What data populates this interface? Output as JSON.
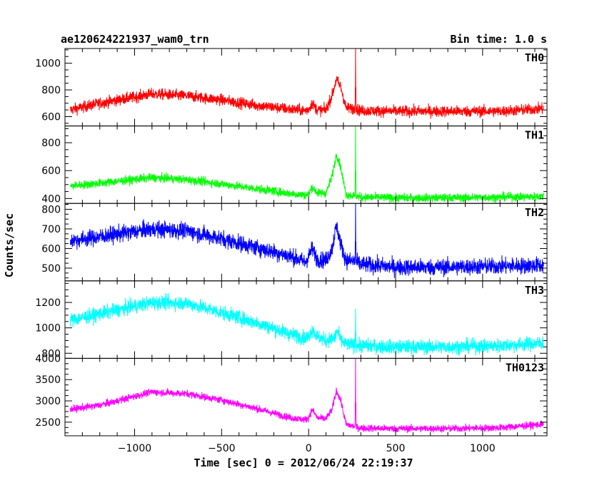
{
  "header": {
    "title": "ae120624221937_wam0_trn",
    "bin_time": "Bin time: 1.0 s"
  },
  "axes": {
    "ylabel": "Counts/sec",
    "xlabel": "Time [sec] 0 = 2012/06/24 22:19:37"
  },
  "chart_data": {
    "type": "line",
    "x_range": [
      -1400,
      1370
    ],
    "x_ticks": [
      -1000,
      -500,
      0,
      500,
      1000
    ],
    "x_tick_labels": [
      "−1000",
      "−500",
      "0",
      "500",
      "1000"
    ],
    "panels": [
      {
        "name": "TH0",
        "color": "#ff0000",
        "ylim": [
          530,
          1110
        ],
        "y_ticks": [
          600,
          800,
          1000
        ],
        "y_tick_labels": [
          "600",
          "800",
          "1000"
        ],
        "noise": 30,
        "knots": [
          [
            -1370,
            650
          ],
          [
            -1200,
            700
          ],
          [
            -900,
            770
          ],
          [
            -700,
            755
          ],
          [
            -500,
            725
          ],
          [
            -300,
            685
          ],
          [
            -100,
            655
          ],
          [
            -20,
            645
          ],
          [
            0,
            655
          ],
          [
            20,
            700
          ],
          [
            50,
            650
          ],
          [
            100,
            650
          ],
          [
            135,
            760
          ],
          [
            160,
            880
          ],
          [
            185,
            820
          ],
          [
            215,
            665
          ],
          [
            260,
            660
          ],
          [
            300,
            645
          ],
          [
            500,
            640
          ],
          [
            800,
            640
          ],
          [
            1100,
            640
          ],
          [
            1350,
            660
          ]
        ],
        "spike": [
          270,
          1110
        ]
      },
      {
        "name": "TH1",
        "color": "#00ff00",
        "ylim": [
          365,
          920
        ],
        "y_ticks": [
          400,
          600,
          800
        ],
        "y_tick_labels": [
          "400",
          "600",
          "800"
        ],
        "noise": 22,
        "knots": [
          [
            -1370,
            490
          ],
          [
            -1200,
            510
          ],
          [
            -900,
            550
          ],
          [
            -700,
            535
          ],
          [
            -500,
            505
          ],
          [
            -300,
            470
          ],
          [
            -100,
            435
          ],
          [
            -20,
            425
          ],
          [
            0,
            430
          ],
          [
            20,
            485
          ],
          [
            50,
            440
          ],
          [
            100,
            440
          ],
          [
            135,
            560
          ],
          [
            160,
            720
          ],
          [
            185,
            620
          ],
          [
            215,
            430
          ],
          [
            260,
            420
          ],
          [
            300,
            410
          ],
          [
            500,
            405
          ],
          [
            800,
            405
          ],
          [
            1100,
            410
          ],
          [
            1350,
            415
          ]
        ],
        "spike": [
          270,
          920
        ]
      },
      {
        "name": "TH2",
        "color": "#0000ff",
        "ylim": [
          435,
          830
        ],
        "y_ticks": [
          500,
          600,
          700,
          800
        ],
        "y_tick_labels": [
          "500",
          "600",
          "700",
          "800"
        ],
        "noise": 30,
        "knots": [
          [
            -1370,
            640
          ],
          [
            -1200,
            660
          ],
          [
            -900,
            700
          ],
          [
            -700,
            690
          ],
          [
            -500,
            650
          ],
          [
            -300,
            605
          ],
          [
            -100,
            560
          ],
          [
            -20,
            530
          ],
          [
            0,
            560
          ],
          [
            20,
            600
          ],
          [
            50,
            545
          ],
          [
            100,
            540
          ],
          [
            135,
            600
          ],
          [
            160,
            720
          ],
          [
            185,
            620
          ],
          [
            215,
            540
          ],
          [
            260,
            535
          ],
          [
            300,
            520
          ],
          [
            500,
            505
          ],
          [
            800,
            505
          ],
          [
            1100,
            510
          ],
          [
            1350,
            515
          ]
        ],
        "spike": [
          270,
          830
        ]
      },
      {
        "name": "TH3",
        "color": "#00ffff",
        "ylim": [
          760,
          1370
        ],
        "y_ticks": [
          800,
          1000,
          1200
        ],
        "y_tick_labels": [
          "800",
          "1000",
          "1200"
        ],
        "noise": 40,
        "knots": [
          [
            -1370,
            1060
          ],
          [
            -1200,
            1110
          ],
          [
            -900,
            1200
          ],
          [
            -700,
            1195
          ],
          [
            -500,
            1120
          ],
          [
            -300,
            1040
          ],
          [
            -100,
            950
          ],
          [
            -20,
            920
          ],
          [
            0,
            930
          ],
          [
            20,
            990
          ],
          [
            50,
            930
          ],
          [
            100,
            900
          ],
          [
            150,
            920
          ],
          [
            165,
            980
          ],
          [
            185,
            900
          ],
          [
            215,
            870
          ],
          [
            300,
            860
          ],
          [
            500,
            850
          ],
          [
            800,
            850
          ],
          [
            1100,
            860
          ],
          [
            1350,
            880
          ]
        ],
        "spike": [
          270,
          1150
        ]
      },
      {
        "name": "TH0123",
        "color": "#ff00ff",
        "ylim": [
          2180,
          4000
        ],
        "y_ticks": [
          2500,
          3000,
          3500,
          4000
        ],
        "y_tick_labels": [
          "2500",
          "3000",
          "3500",
          "4000"
        ],
        "noise": 60,
        "knots": [
          [
            -1370,
            2800
          ],
          [
            -1200,
            2900
          ],
          [
            -900,
            3210
          ],
          [
            -700,
            3170
          ],
          [
            -500,
            3020
          ],
          [
            -300,
            2820
          ],
          [
            -100,
            2600
          ],
          [
            -20,
            2560
          ],
          [
            0,
            2600
          ],
          [
            20,
            2800
          ],
          [
            50,
            2600
          ],
          [
            100,
            2580
          ],
          [
            135,
            2800
          ],
          [
            160,
            3250
          ],
          [
            185,
            3000
          ],
          [
            215,
            2450
          ],
          [
            260,
            2400
          ],
          [
            300,
            2360
          ],
          [
            500,
            2350
          ],
          [
            800,
            2350
          ],
          [
            1100,
            2370
          ],
          [
            1350,
            2450
          ]
        ],
        "spike": [
          270,
          4000
        ]
      }
    ]
  }
}
